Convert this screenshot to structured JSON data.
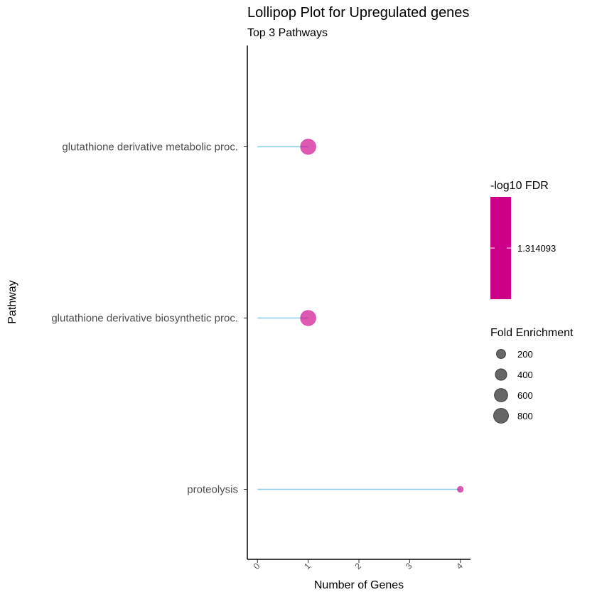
{
  "chart_data": {
    "type": "lollipop",
    "title": "Lollipop Plot for Upregulated genes",
    "subtitle": "Top 3 Pathways",
    "xlabel": "Number of Genes",
    "ylabel": "Pathway",
    "xlim": [
      -0.2,
      4.2
    ],
    "x_ticks": [
      "0",
      "1",
      "2",
      "3",
      "4"
    ],
    "categories": [
      "glutathione derivative metabolic proc.",
      "glutathione derivative biosynthetic proc.",
      "proteolysis"
    ],
    "values": [
      1,
      1,
      4
    ],
    "fold_enrichment": [
      780,
      780,
      20
    ],
    "neg_log10_fdr": [
      1.314093,
      1.314093,
      1.314093
    ],
    "stem_color": "#87CEEB",
    "point_color": "#CC0088",
    "grid": false,
    "legend_position": "right",
    "legends": {
      "color": {
        "title": "-log10 FDR",
        "label": "1.314093",
        "color": "#CC0088"
      },
      "size": {
        "title": "Fold Enrichment",
        "breaks": [
          200,
          400,
          600,
          800
        ],
        "labels": [
          "200",
          "400",
          "600",
          "800"
        ]
      }
    }
  }
}
